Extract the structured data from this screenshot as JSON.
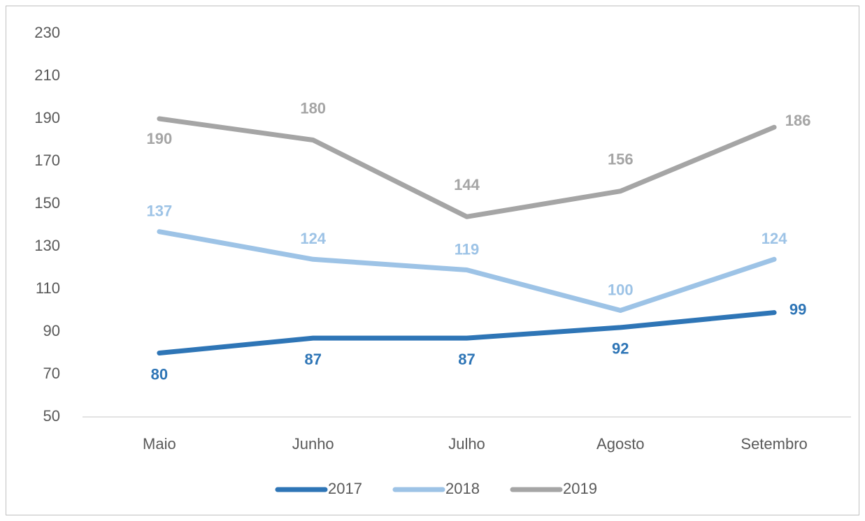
{
  "chart_data": {
    "type": "line",
    "categories": [
      "Maio",
      "Junho",
      "Julho",
      "Agosto",
      "Setembro"
    ],
    "series": [
      {
        "name": "2017",
        "color": "#2e75b6",
        "values": [
          80,
          87,
          87,
          92,
          99
        ]
      },
      {
        "name": "2018",
        "color": "#9dc3e6",
        "values": [
          137,
          124,
          119,
          100,
          124
        ]
      },
      {
        "name": "2019",
        "color": "#a5a5a5",
        "values": [
          190,
          180,
          144,
          156,
          186
        ]
      }
    ],
    "ylim": [
      50,
      230
    ],
    "yticks": [
      50,
      70,
      90,
      110,
      130,
      150,
      170,
      190,
      210,
      230
    ],
    "grid": false,
    "legend": "bottom"
  }
}
